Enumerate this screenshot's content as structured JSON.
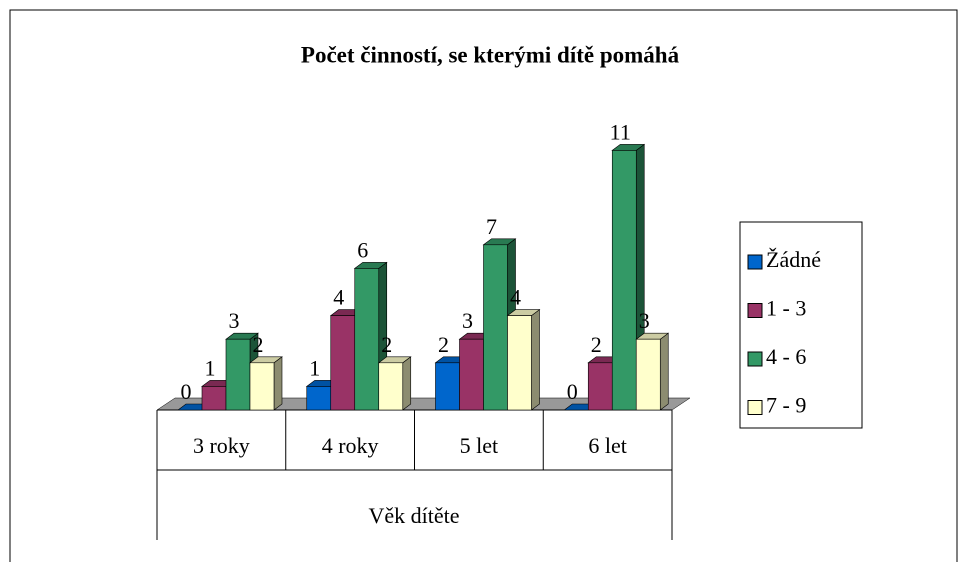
{
  "chart_data": {
    "type": "bar3d",
    "title": "Počet činností, se kterými dítě pomáhá",
    "x_label": "Věk dítěte",
    "categories": [
      "3 roky",
      "4 roky",
      "5 let",
      "6 let"
    ],
    "series": [
      {
        "name": "Žádné",
        "color": "#0066cc",
        "values": [
          0,
          1,
          2,
          0
        ]
      },
      {
        "name": "1 - 3",
        "color": "#993366",
        "values": [
          1,
          4,
          3,
          2
        ]
      },
      {
        "name": "4 - 6",
        "color": "#339966",
        "values": [
          3,
          6,
          7,
          11
        ]
      },
      {
        "name": "7 - 9",
        "color": "#ffffcc",
        "values": [
          2,
          2,
          4,
          3
        ]
      }
    ]
  }
}
